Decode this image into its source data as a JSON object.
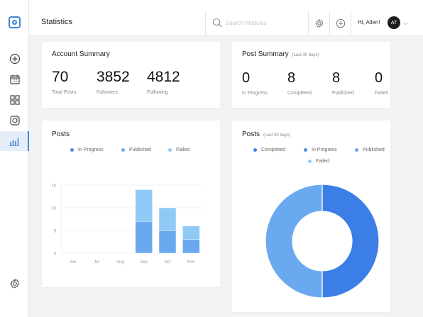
{
  "header": {
    "title": "Statistics",
    "search_placeholder": "Search Modules",
    "greeting": "Hi, Allen!",
    "avatar_initials": "AT"
  },
  "sidebar": {
    "items": [
      {
        "icon": "plus-circle-icon"
      },
      {
        "icon": "calendar-icon"
      },
      {
        "icon": "grid-icon"
      },
      {
        "icon": "instagram-icon"
      },
      {
        "icon": "bar-chart-icon",
        "active": true
      }
    ],
    "bottom_icon": "gear-icon"
  },
  "account_summary": {
    "title": "Account Summary",
    "stats": [
      {
        "value": "70",
        "label": "Total Posts"
      },
      {
        "value": "3852",
        "label": "Followers"
      },
      {
        "value": "4812",
        "label": "Following"
      }
    ]
  },
  "post_summary": {
    "title": "Post Summary",
    "subtitle": "(Last 30 days)",
    "stats": [
      {
        "value": "0",
        "label": "In Progress"
      },
      {
        "value": "8",
        "label": "Completed"
      },
      {
        "value": "8",
        "label": "Published"
      },
      {
        "value": "0",
        "label": "Failed"
      }
    ]
  },
  "posts_bar": {
    "title": "Posts",
    "legend": [
      "In Progress",
      "Published",
      "Failed"
    ]
  },
  "posts_donut": {
    "title": "Posts",
    "subtitle": "(Last 30 days)",
    "legend": [
      "Completed",
      "In Progress",
      "Published",
      "Failed"
    ]
  },
  "colors": {
    "accent": "#3f86d9",
    "completed": "#3b7ee6",
    "in_progress": "#4f8fe0",
    "published": "#6aa9f0",
    "failed": "#8fcaf7"
  },
  "chart_data": [
    {
      "type": "bar",
      "title": "Posts",
      "stacked": true,
      "categories": [
        "Jun",
        "Jul",
        "Aug",
        "Sep",
        "Oct",
        "Nov"
      ],
      "yticks": [
        0,
        5,
        10,
        15
      ],
      "ylim": [
        0,
        15
      ],
      "series": [
        {
          "name": "In Progress",
          "values": [
            0,
            0,
            0,
            0,
            0,
            0
          ]
        },
        {
          "name": "Published",
          "values": [
            0,
            0,
            0,
            7,
            5,
            3
          ]
        },
        {
          "name": "Failed",
          "values": [
            0,
            0,
            0,
            7,
            5,
            3
          ]
        }
      ],
      "grid": true,
      "legend": "top"
    },
    {
      "type": "pie",
      "title": "Posts",
      "subtitle": "(Last 30 days)",
      "donut": true,
      "labels": [
        "Completed",
        "In Progress",
        "Published",
        "Failed"
      ],
      "values": [
        8,
        0,
        8,
        0
      ],
      "legend": "top"
    }
  ]
}
